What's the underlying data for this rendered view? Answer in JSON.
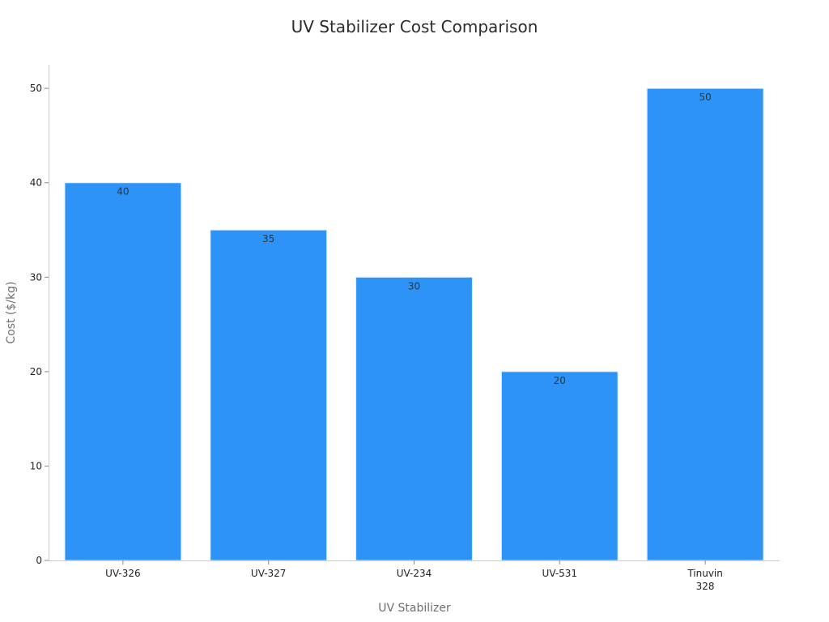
{
  "chart_data": {
    "type": "bar",
    "title": "UV Stabilizer Cost Comparison",
    "xlabel": "UV Stabilizer",
    "ylabel": "Cost ($/kg)",
    "categories": [
      [
        "UV-326"
      ],
      [
        "UV-327"
      ],
      [
        "UV-234"
      ],
      [
        "UV-531"
      ],
      [
        "Tinuvin",
        "328"
      ]
    ],
    "values": [
      40,
      35,
      30,
      20,
      50
    ],
    "data_labels": [
      "40",
      "35",
      "30",
      "20",
      "50"
    ],
    "ylim": [
      0,
      52.5
    ],
    "yticks": [
      0,
      10,
      20,
      30,
      40,
      50
    ],
    "ytick_labels": [
      "0",
      "10",
      "20",
      "30",
      "40",
      "50"
    ],
    "grid": false,
    "legend": "none",
    "bar_color": "#2e93f7",
    "bar_edge_color": "#d9ecfd"
  }
}
